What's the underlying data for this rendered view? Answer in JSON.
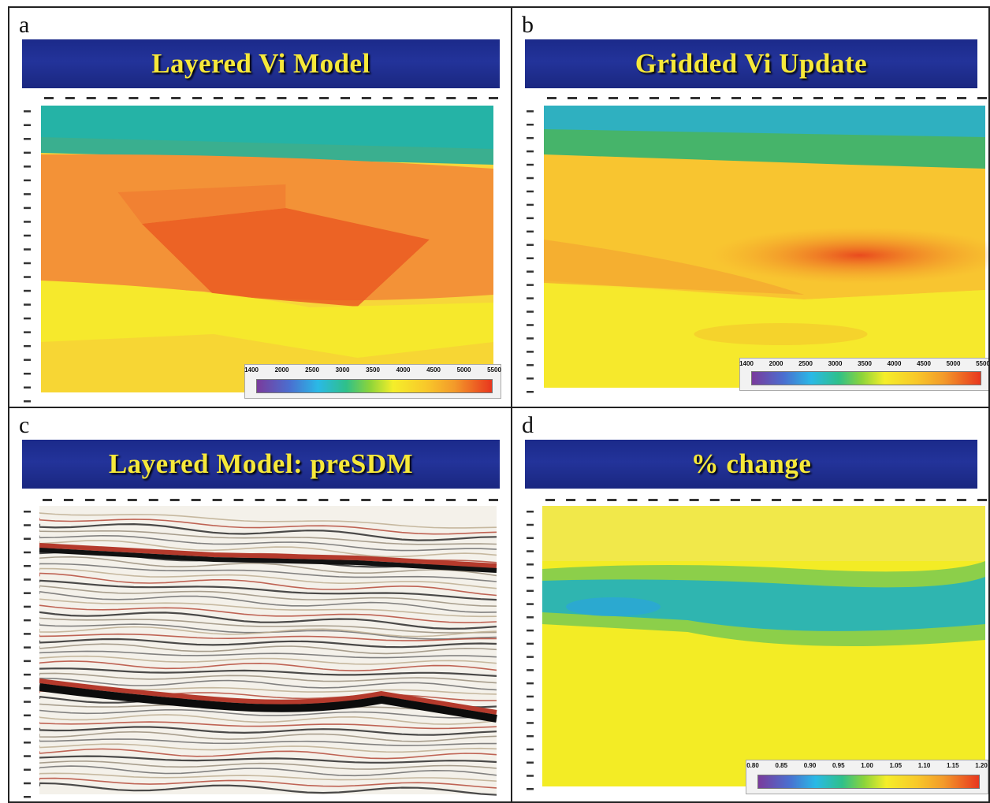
{
  "panels": [
    {
      "label": "a",
      "title": "Layered Vi Model",
      "type": "velocity",
      "colorbar_ticks": [
        "1400",
        "2000",
        "2500",
        "3000",
        "3500",
        "4000",
        "4500",
        "5000",
        "5500"
      ]
    },
    {
      "label": "b",
      "title": "Gridded Vi Update",
      "type": "velocity",
      "colorbar_ticks": [
        "1400",
        "2000",
        "2500",
        "3000",
        "3500",
        "4000",
        "4500",
        "5000",
        "5500"
      ]
    },
    {
      "label": "c",
      "title": "Layered Model: preSDM",
      "type": "seismic",
      "colorbar_ticks": []
    },
    {
      "label": "d",
      "title": "% change",
      "type": "percent",
      "colorbar_ticks": [
        "0.80",
        "0.85",
        "0.90",
        "0.95",
        "1.00",
        "1.05",
        "1.10",
        "1.15",
        "1.20"
      ]
    }
  ],
  "colors": {
    "banner": "#1f2e8e",
    "banner_text": "#f6e83a",
    "teal": "#25b3a6",
    "green": "#39b56a",
    "orange": "#f39237",
    "red_orange": "#ea5a22",
    "yellow": "#f6e92c",
    "cyan": "#1fb8c9"
  }
}
